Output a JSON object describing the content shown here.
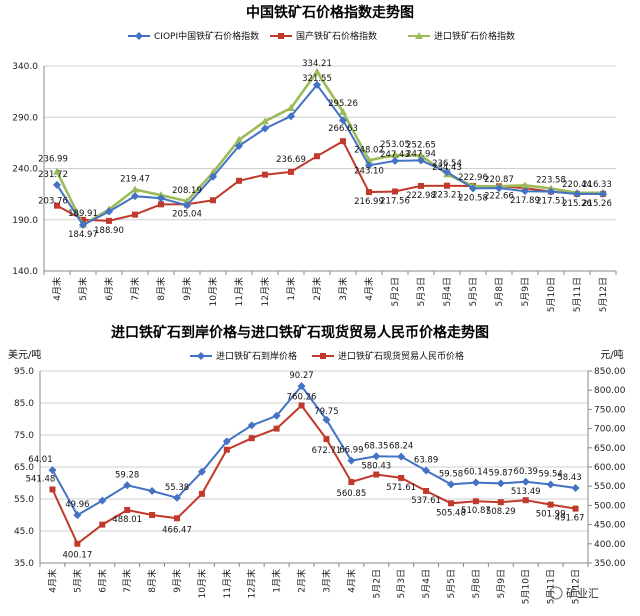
{
  "chart_data": [
    {
      "type": "line",
      "title": "中国铁矿石价格指数走势图",
      "categories": [
        "4月末",
        "5月末",
        "6月末",
        "7月末",
        "8月末",
        "9月末",
        "10月末",
        "11月末",
        "12月末",
        "1月末",
        "2月末",
        "3月末",
        "4月末",
        "5月2日",
        "5月3日",
        "5月4日",
        "5月5日",
        "5月8日",
        "5月9日",
        "5月10日",
        "5月11日",
        "5月12日"
      ],
      "ylim": [
        140,
        340
      ],
      "yticks": [
        "140.0",
        "190.0",
        "240.0",
        "290.0",
        "340.0"
      ],
      "series": [
        {
          "name": "CIOPI中国铁矿石价格指数",
          "color": "#4472c4",
          "values": [
            224,
            185,
            198,
            213,
            211,
            204,
            232,
            262,
            279,
            291,
            321.55,
            287,
            243.1,
            247.43,
            247.94,
            236.54,
            220.58,
            220.87,
            217.89,
            217.51,
            215.26,
            215.26
          ]
        },
        {
          "name": "国产铁矿石价格指数",
          "color": "#c0392b",
          "values": [
            203.76,
            189.91,
            188.9,
            195,
            205,
            205.04,
            209,
            228,
            234,
            236.69,
            252,
            266.63,
            216.99,
            217.56,
            222.98,
            223.21,
            222.96,
            222.66,
            220.87,
            217.51,
            215.26,
            215.26
          ]
        },
        {
          "name": "进口铁矿石价格指数",
          "color": "#9bbb59",
          "values": [
            236.99,
            184.97,
            200,
            219.47,
            214,
            208.19,
            236,
            268,
            286,
            299,
            334.21,
            295.26,
            248.02,
            253.05,
            252.65,
            234.43,
            222.96,
            222.66,
            223.58,
            220.44,
            216.33,
            216.33
          ]
        }
      ],
      "data_labels": [
        "236.99",
        "231.72",
        "203.76",
        "189.91",
        "184.97",
        "188.90",
        "219.47",
        "208.19",
        "205.04",
        "236.69",
        "334.21",
        "321.55",
        "266.63",
        "295.26",
        "248.02",
        "253.05",
        "252.65",
        "247.43",
        "247.94",
        "243.10",
        "236.54",
        "234.43",
        "216.99",
        "217.56",
        "222.98",
        "223.21",
        "222.96",
        "220.58",
        "220.87",
        "222.66",
        "223.58",
        "217.89",
        "220.44",
        "217.51",
        "215.26",
        "216.33",
        "215.26"
      ]
    },
    {
      "type": "line",
      "title": "进口铁矿石到岸价格与进口铁矿石现货贸易人民币价格走势图",
      "categories": [
        "4月末",
        "5月末",
        "6月末",
        "7月末",
        "8月末",
        "9月末",
        "10月末",
        "11月末",
        "12月末",
        "1月末",
        "2月末",
        "3月末",
        "4月末",
        "5月2日",
        "5月3日",
        "5月4日",
        "5月5日",
        "5月8日",
        "5月9日",
        "5月10日",
        "5月11日",
        "5月12日"
      ],
      "ylabel_left": "美元/吨",
      "ylabel_right": "元/吨",
      "ylim_left": [
        35,
        95
      ],
      "yticks_left": [
        "35.0",
        "45.0",
        "55.0",
        "65.0",
        "75.0",
        "85.0",
        "95.0"
      ],
      "ylim_right": [
        350,
        850
      ],
      "yticks_right": [
        "350.00",
        "400.00",
        "450.00",
        "500.00",
        "550.00",
        "600.00",
        "650.00",
        "700.00",
        "750.00",
        "800.00",
        "850.00"
      ],
      "series": [
        {
          "name": "进口铁矿石到岸价格",
          "color": "#4472c4",
          "axis": "left",
          "values": [
            64.01,
            49.96,
            54.5,
            59.28,
            57.5,
            55.38,
            63.5,
            73,
            78,
            81,
            90.27,
            79.75,
            66.99,
            68.35,
            68.24,
            63.89,
            59.58,
            60.14,
            59.87,
            60.39,
            59.54,
            58.43
          ]
        },
        {
          "name": "进口铁矿石现货贸易人民币价格",
          "color": "#c0392b",
          "axis": "right",
          "values": [
            541.48,
            400.17,
            450,
            488.01,
            475,
            466.47,
            530,
            645,
            675,
            700,
            760.26,
            672.71,
            560.85,
            580.43,
            571.61,
            537.61,
            505.48,
            510.87,
            508.29,
            513.49,
            501.99,
            491.67
          ]
        }
      ],
      "data_labels": [
        "64.01",
        "49.96",
        "59.28",
        "55.38",
        "90.27",
        "79.75",
        "66.99",
        "68.35",
        "68.24",
        "63.89",
        "59.58",
        "60.14",
        "59.87",
        "60.39",
        "59.54",
        "58.43",
        "541.48",
        "400.17",
        "488.01",
        "466.47",
        "760.26",
        "672.71",
        "560.85",
        "580.43",
        "571.61",
        "537.61",
        "505.48",
        "510.87",
        "508.29",
        "513.49",
        "501.99",
        "491.67"
      ]
    }
  ],
  "watermark": "矿业汇"
}
